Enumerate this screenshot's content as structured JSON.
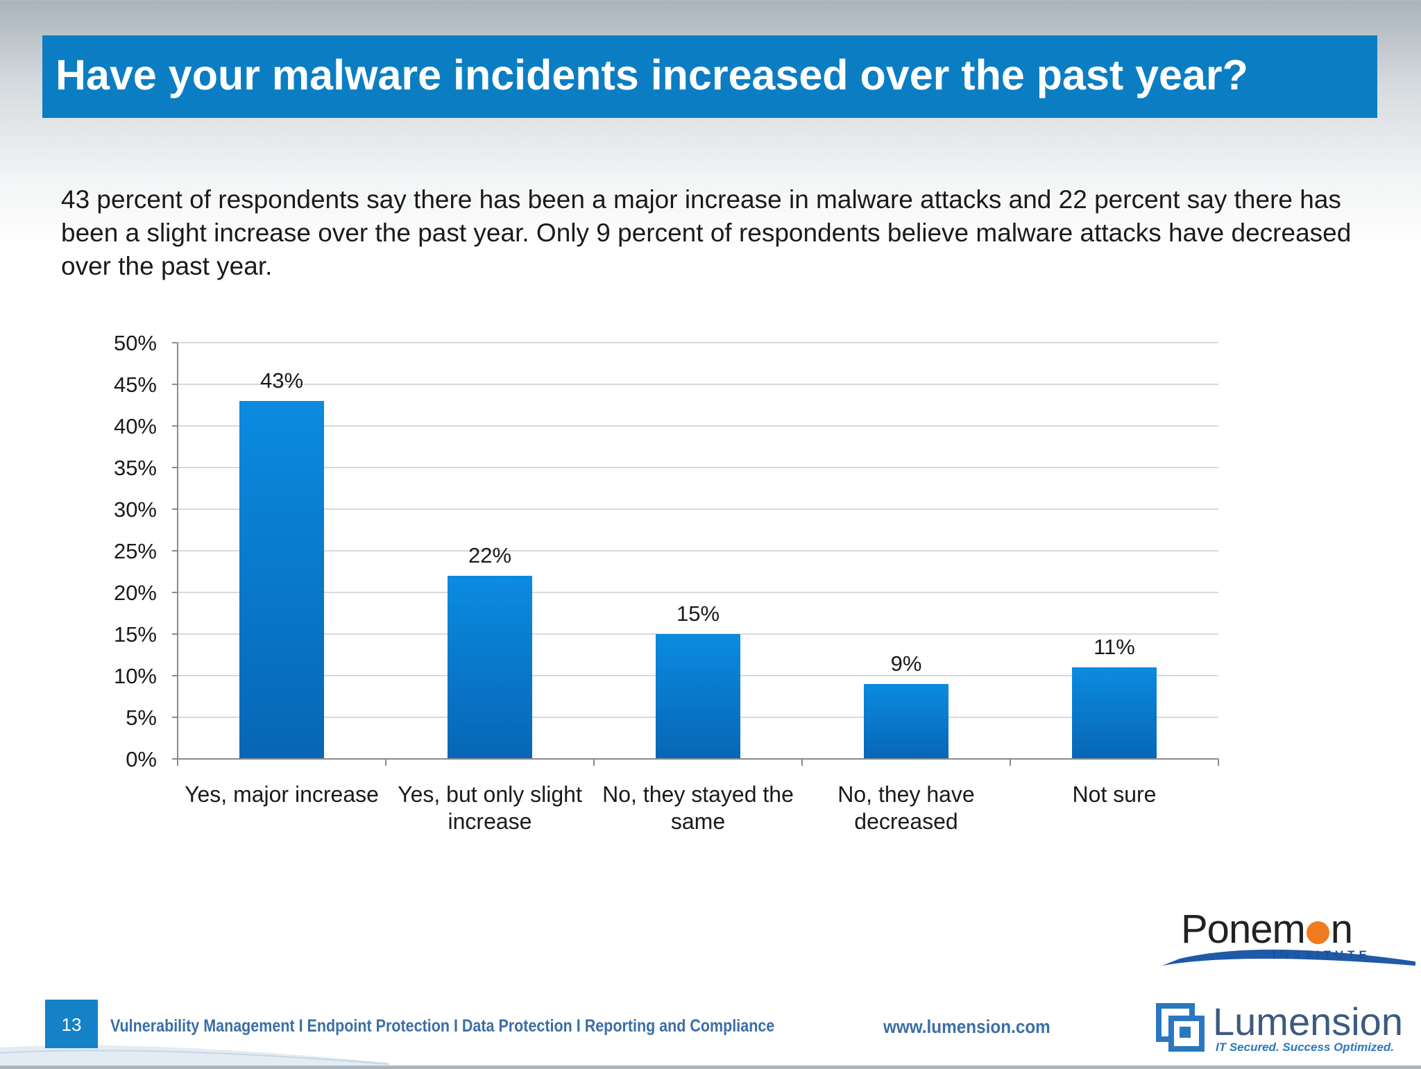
{
  "slide": {
    "title": "Have your malware incidents increased over the past year?",
    "summary": "43 percent of respondents say there has been a major increase in malware attacks and 22 percent say there has been a slight increase over the past year.  Only 9 percent of respondents believe malware attacks have decreased over the past year.",
    "page_number": "13"
  },
  "chart_data": {
    "type": "bar",
    "categories": [
      [
        "Yes, major increase"
      ],
      [
        "Yes, but only slight",
        "increase"
      ],
      [
        "No, they stayed the",
        "same"
      ],
      [
        "No, they have",
        "decreased"
      ],
      [
        "Not sure"
      ]
    ],
    "values": [
      43,
      22,
      15,
      9,
      11
    ],
    "data_labels": [
      "43%",
      "22%",
      "15%",
      "9%",
      "11%"
    ],
    "ylim": [
      0,
      50
    ],
    "yticks": [
      "0%",
      "5%",
      "10%",
      "15%",
      "20%",
      "25%",
      "30%",
      "35%",
      "40%",
      "45%",
      "50%"
    ],
    "grid": true,
    "bar_color": "#0a84d6"
  },
  "footer": {
    "links": "Vulnerability Management I Endpoint Protection I Data Protection I Reporting and Compliance",
    "url": "www.lumension.com"
  },
  "logos": {
    "ponemon_part1": "Ponem",
    "ponemon_part2": "n",
    "ponemon_sub": "INSTITUTE",
    "lumension_name": "Lumension",
    "lumension_tagline": "IT Secured. Success Optimized."
  }
}
